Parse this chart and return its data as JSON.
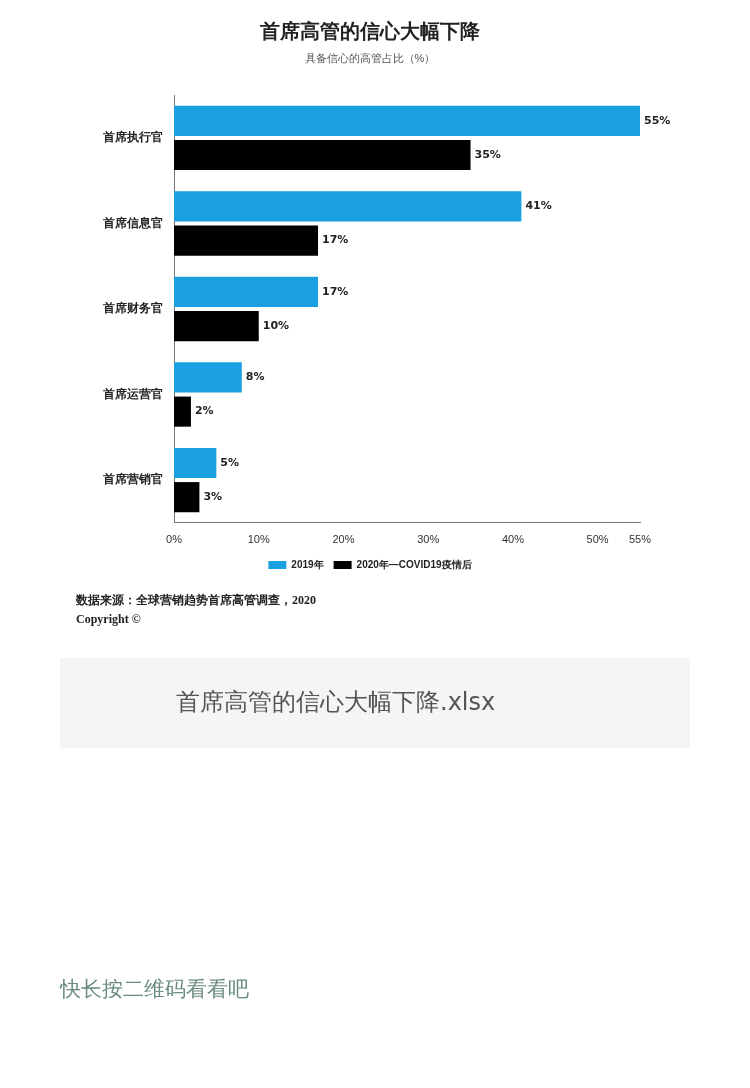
{
  "chart_data": {
    "type": "bar",
    "orientation": "horizontal",
    "title": "首席高管的信心大幅下降",
    "subtitle": "具备信心的高管占比（%）",
    "categories": [
      "首席执行官",
      "首席信息官",
      "首席财务官",
      "首席运营官",
      "首席营销官"
    ],
    "series": [
      {
        "name": "2019年",
        "color": "#1a9fe0",
        "values": [
          55,
          41,
          17,
          8,
          5
        ],
        "value_labels": [
          "55%",
          "41%",
          "17%",
          "8%",
          "5%"
        ]
      },
      {
        "name": "2020年—COVID19疫情后",
        "color": "#000000",
        "values": [
          35,
          17,
          10,
          2,
          3
        ],
        "value_labels": [
          "35%",
          "17%",
          "10%",
          "2%",
          "3%"
        ]
      }
    ],
    "xlim": [
      0,
      55
    ],
    "xticks": [
      {
        "value": 0,
        "label": "0%"
      },
      {
        "value": 10,
        "label": "10%"
      },
      {
        "value": 20,
        "label": "20%"
      },
      {
        "value": 30,
        "label": "30%"
      },
      {
        "value": 40,
        "label": "40%"
      },
      {
        "value": 50,
        "label": "50%"
      },
      {
        "value": 55,
        "label": "55%"
      }
    ],
    "grid": false,
    "legend": "bottom",
    "annotations": [
      "数据来源：全球营销趋势首席高管调查，2020",
      "Copyright ©",
      "首席高管的信心大幅下降.xlsx",
      "快长按二维码看看吧"
    ]
  }
}
